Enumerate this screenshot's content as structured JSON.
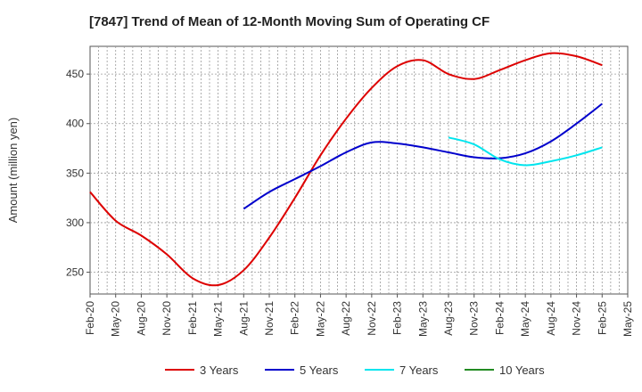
{
  "chart_data": {
    "type": "line",
    "title": "[7847]  Trend of Mean of 12-Month Moving Sum of Operating CF",
    "xlabel": "",
    "ylabel": "Amount (million yen)",
    "ylim": [
      228,
      478
    ],
    "yticks": [
      250,
      300,
      350,
      400,
      450
    ],
    "categories": [
      "Feb-20",
      "May-20",
      "Aug-20",
      "Nov-20",
      "Feb-21",
      "May-21",
      "Aug-21",
      "Nov-21",
      "Feb-22",
      "May-22",
      "Aug-22",
      "Nov-22",
      "Feb-23",
      "May-23",
      "Aug-23",
      "Nov-23",
      "Feb-24",
      "May-24",
      "Aug-24",
      "Nov-24",
      "Feb-25",
      "May-25"
    ],
    "grid": true,
    "legend_position": "bottom",
    "series": [
      {
        "name": "3 Years",
        "color": "#dd0000",
        "values": [
          331,
          302,
          287,
          268,
          244,
          237,
          252,
          285,
          325,
          368,
          405,
          436,
          458,
          464,
          450,
          445,
          454,
          464,
          471,
          468,
          459,
          null
        ]
      },
      {
        "name": "5 Years",
        "color": "#0000cc",
        "values": [
          null,
          null,
          null,
          null,
          null,
          null,
          314,
          331,
          344,
          357,
          371,
          381,
          380,
          376,
          371,
          366,
          365,
          370,
          382,
          400,
          420,
          null
        ]
      },
      {
        "name": "7 Years",
        "color": "#00e5ee",
        "values": [
          null,
          null,
          null,
          null,
          null,
          null,
          null,
          null,
          null,
          null,
          null,
          null,
          null,
          null,
          386,
          379,
          364,
          358,
          362,
          368,
          376,
          null
        ]
      },
      {
        "name": "10 Years",
        "color": "#228b22",
        "values": [
          null,
          null,
          null,
          null,
          null,
          null,
          null,
          null,
          null,
          null,
          null,
          null,
          null,
          null,
          null,
          null,
          null,
          null,
          null,
          null,
          null,
          null
        ]
      }
    ]
  }
}
